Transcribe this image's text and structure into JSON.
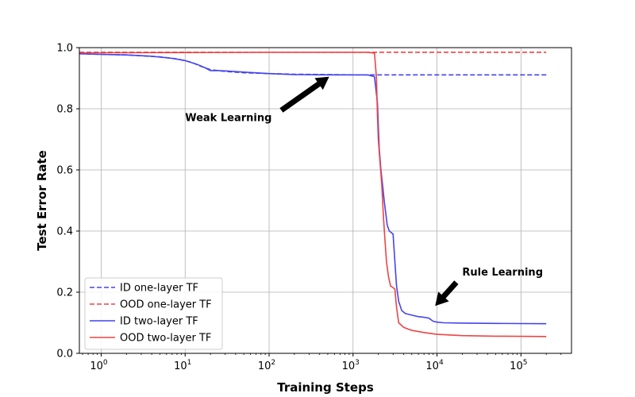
{
  "chart_data": {
    "type": "line",
    "xscale": "log",
    "xlim": [
      0.55,
      400000
    ],
    "ylim": [
      0.0,
      1.0
    ],
    "xlabel": "Training Steps",
    "ylabel": "Test Error Rate",
    "grid": true,
    "legend_position": "lower-left",
    "x_ticks": [
      {
        "value": 1,
        "base": "10",
        "exp": "0"
      },
      {
        "value": 10,
        "base": "10",
        "exp": "1"
      },
      {
        "value": 100,
        "base": "10",
        "exp": "2"
      },
      {
        "value": 1000,
        "base": "10",
        "exp": "3"
      },
      {
        "value": 10000,
        "base": "10",
        "exp": "4"
      },
      {
        "value": 100000,
        "base": "10",
        "exp": "5"
      }
    ],
    "y_ticks": [
      {
        "value": 0.0,
        "label": "0.0"
      },
      {
        "value": 0.2,
        "label": "0.2"
      },
      {
        "value": 0.4,
        "label": "0.4"
      },
      {
        "value": 0.6,
        "label": "0.6"
      },
      {
        "value": 0.8,
        "label": "0.8"
      },
      {
        "value": 1.0,
        "label": "1.0"
      }
    ],
    "series": [
      {
        "name": "ID one-layer TF",
        "color": "#4444ee",
        "style": "dashed",
        "x": [
          0.55,
          1,
          2,
          5,
          8,
          12,
          15,
          20,
          30,
          50,
          100,
          200,
          500,
          1000,
          2000,
          5000,
          10000,
          50000,
          200000
        ],
        "y": [
          0.98,
          0.978,
          0.976,
          0.97,
          0.963,
          0.952,
          0.94,
          0.928,
          0.922,
          0.918,
          0.915,
          0.913,
          0.912,
          0.911,
          0.911,
          0.911,
          0.911,
          0.911,
          0.911
        ]
      },
      {
        "name": "OOD one-layer TF",
        "color": "#ee4444",
        "style": "dashed",
        "x": [
          0.55,
          1,
          10,
          100,
          1000,
          10000,
          100000,
          200000
        ],
        "y": [
          0.985,
          0.985,
          0.985,
          0.985,
          0.985,
          0.985,
          0.985,
          0.985
        ]
      },
      {
        "name": "ID two-layer TF",
        "color": "#4444ee",
        "style": "solid",
        "x": [
          0.55,
          1,
          2,
          4,
          7,
          10,
          14,
          17,
          20,
          25,
          30,
          50,
          100,
          200,
          500,
          1000,
          1500,
          1800,
          1950,
          2050,
          2150,
          2250,
          2350,
          2450,
          2550,
          2700,
          2850,
          3000,
          3150,
          3300,
          3500,
          3800,
          4200,
          5000,
          6000,
          7000,
          8000,
          9000,
          10000,
          12000,
          20000,
          50000,
          200000
        ],
        "y": [
          0.98,
          0.978,
          0.976,
          0.972,
          0.965,
          0.958,
          0.945,
          0.935,
          0.925,
          0.925,
          0.924,
          0.92,
          0.915,
          0.912,
          0.911,
          0.911,
          0.911,
          0.905,
          0.82,
          0.67,
          0.6,
          0.55,
          0.5,
          0.46,
          0.42,
          0.4,
          0.395,
          0.39,
          0.3,
          0.22,
          0.17,
          0.14,
          0.13,
          0.125,
          0.12,
          0.118,
          0.115,
          0.105,
          0.102,
          0.1,
          0.099,
          0.098,
          0.097
        ]
      },
      {
        "name": "OOD two-layer TF",
        "color": "#ee4444",
        "style": "solid",
        "x": [
          0.55,
          1,
          10,
          100,
          1000,
          1500,
          1800,
          1900,
          1950,
          2000,
          2100,
          2200,
          2300,
          2400,
          2500,
          2650,
          2800,
          3000,
          3150,
          3300,
          3500,
          4000,
          5000,
          7000,
          10000,
          20000,
          50000,
          200000
        ],
        "y": [
          0.983,
          0.983,
          0.984,
          0.985,
          0.985,
          0.985,
          0.982,
          0.9,
          0.78,
          0.7,
          0.62,
          0.55,
          0.45,
          0.37,
          0.3,
          0.25,
          0.22,
          0.215,
          0.21,
          0.15,
          0.1,
          0.085,
          0.075,
          0.068,
          0.062,
          0.058,
          0.056,
          0.055
        ]
      }
    ],
    "annotations": [
      {
        "text": "Weak Learning",
        "text_x": 10,
        "text_y": 0.76,
        "arrow_from_x": 140,
        "arrow_from_y": 0.795,
        "arrow_to_x": 520,
        "arrow_to_y": 0.905
      },
      {
        "text": "Rule Learning",
        "text_x": 20000,
        "text_y": 0.255,
        "arrow_from_x": 17000,
        "arrow_from_y": 0.232,
        "arrow_to_x": 9500,
        "arrow_to_y": 0.155
      }
    ]
  }
}
